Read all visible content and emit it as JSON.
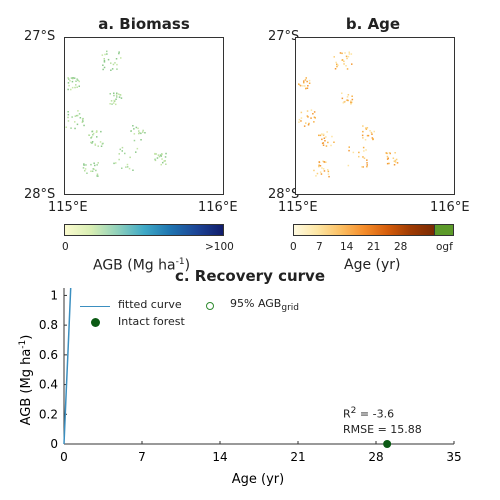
{
  "colors": {
    "biomass_low": "#fbfbcf",
    "biomass_high": "#101c6b",
    "age_low": "#fffae0",
    "age_high": "#7a2a03",
    "ogf": "#5c9a2a",
    "fitted_curve": "#3b8fc0",
    "intact_forest": "#0b5a14",
    "grid_points": "#2f8a2f"
  },
  "panel_a": {
    "title": "a. Biomass",
    "lat_top": "27°S",
    "lat_bottom": "28°S",
    "lon_left": "115°E",
    "lon_right": "116°E",
    "colorbar": {
      "min_label": "0",
      "max_label": ">100",
      "label_main": "AGB (Mg ha",
      "label_sup": "-1",
      "label_end": ")"
    }
  },
  "panel_b": {
    "title": "b. Age",
    "lat_top": "27°S",
    "lat_bottom": "28°S",
    "lon_left": "115°E",
    "lon_right": "116°E",
    "colorbar": {
      "ticks": [
        "0",
        "7",
        "14",
        "21",
        "28",
        "ogf"
      ],
      "label": "Age (yr)"
    }
  },
  "panel_c": {
    "title": "c. Recovery curve",
    "legend": {
      "fitted": "fitted curve",
      "intact": "Intact forest",
      "grid_main": "95% AGB",
      "grid_sub": "grid"
    },
    "stats": {
      "r2_label": "R",
      "r2_sup": "2",
      "r2_value": " = -3.6",
      "rmse": "RMSE = 15.88"
    }
  },
  "chart_data": {
    "type": "line",
    "title": "c. Recovery curve",
    "xlabel": "Age (yr)",
    "ylabel": "AGB (Mg ha-1)",
    "xlim": [
      0,
      35
    ],
    "ylim": [
      0,
      1.05
    ],
    "xticks": [
      0,
      7,
      14,
      21,
      28,
      35
    ],
    "yticks": [
      0,
      0.2,
      0.4,
      0.6,
      0.8,
      1
    ],
    "series": [
      {
        "name": "fitted curve",
        "kind": "line",
        "x": [
          0,
          0.2,
          0.4,
          0.6
        ],
        "y": [
          0,
          0.35,
          0.7,
          1.05
        ]
      },
      {
        "name": "Intact forest",
        "kind": "marker",
        "x": [
          29
        ],
        "y": [
          0
        ]
      }
    ],
    "annotations": [
      "R2 = -3.6",
      "RMSE = 15.88"
    ],
    "legend_position": "top"
  }
}
